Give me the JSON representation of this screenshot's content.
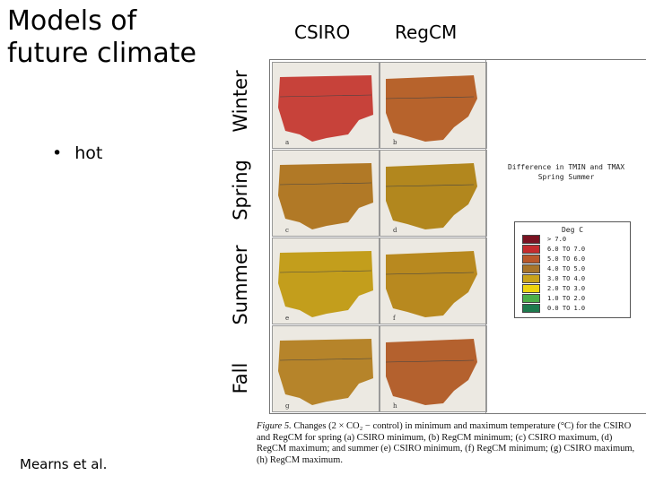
{
  "title": {
    "line1": "Models of",
    "line2": "future climate"
  },
  "bullets": [
    {
      "text": "hot"
    }
  ],
  "credit": "Mearns et al.",
  "columns": [
    "CSIRO",
    "RegCM"
  ],
  "rows": [
    "Winter",
    "Spring",
    "Summer",
    "Fall"
  ],
  "panels": [
    {
      "letter": "a",
      "color": "#c7423a"
    },
    {
      "letter": "b",
      "color": "#b7632c"
    },
    {
      "letter": "c",
      "color": "#b17926"
    },
    {
      "letter": "d",
      "color": "#b2871e"
    },
    {
      "letter": "e",
      "color": "#c39e1c"
    },
    {
      "letter": "f",
      "color": "#b8891f"
    },
    {
      "letter": "g",
      "color": "#b6842a"
    },
    {
      "letter": "h",
      "color": "#b4612e"
    }
  ],
  "figure": {
    "legend_title": [
      "Difference in TMIN and TMAX",
      "Spring Summer"
    ],
    "legend_header": "Deg C",
    "legend": [
      {
        "label": "> 7.0",
        "color": "#7a1322"
      },
      {
        "label": "6.0 TO 7.0",
        "color": "#c42c2e"
      },
      {
        "label": "5.0 TO 6.0",
        "color": "#b9582c"
      },
      {
        "label": "4.0 TO 5.0",
        "color": "#a8752a"
      },
      {
        "label": "3.0 TO 4.0",
        "color": "#c9a31a"
      },
      {
        "label": "2.0 TO 3.0",
        "color": "#eed40f"
      },
      {
        "label": "1.0 TO 2.0",
        "color": "#4cae4a"
      },
      {
        "label": "0.0 TO 1.0",
        "color": "#1d7a4d"
      }
    ]
  },
  "caption": {
    "figure_label": "Figure 5.",
    "text": "Changes (2 × CO₂ − control) in minimum and maximum temperature (°C) for the CSIRO and RegCM for spring (a) CSIRO minimum, (b) RegCM minimum; (c) CSIRO maximum, (d) RegCM maximum; and summer (e) CSIRO minimum, (f) RegCM minimum; (g) CSIRO maximum, (h) RegCM maximum."
  }
}
